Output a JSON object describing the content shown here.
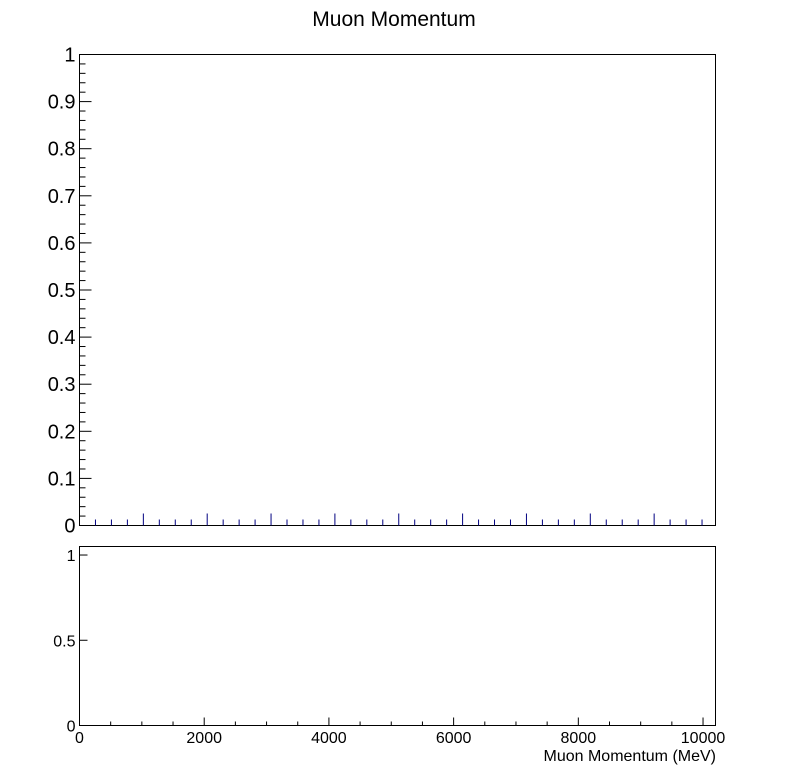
{
  "chart_data": [
    {
      "type": "bar",
      "title": "Muon Momentum",
      "xlabel": "",
      "ylabel": "",
      "xlim": [
        0,
        10200
      ],
      "ylim": [
        0,
        1
      ],
      "y_ticks": [
        0,
        0.1,
        0.2,
        0.3,
        0.4,
        0.5,
        0.6,
        0.7,
        0.8,
        0.9,
        1
      ],
      "y_tick_labels": [
        "0",
        "0.1",
        "0.2",
        "0.3",
        "0.4",
        "0.5",
        "0.6",
        "0.7",
        "0.8",
        "0.9",
        "1"
      ],
      "bin_width": 256,
      "grid": false,
      "colors": {
        "frame": "#000000",
        "bins": "#000080"
      },
      "series": []
    },
    {
      "type": "line",
      "title": "",
      "xlabel": "Muon Momentum (MeV)",
      "ylabel": "",
      "xlim": [
        0,
        10200
      ],
      "ylim": [
        0,
        1.05
      ],
      "x_ticks": [
        0,
        2000,
        4000,
        6000,
        8000,
        10000
      ],
      "x_tick_labels": [
        "0",
        "2000",
        "4000",
        "6000",
        "8000",
        "10000"
      ],
      "y_ticks": [
        0,
        0.5,
        1
      ],
      "y_tick_labels": [
        "0",
        "0.5",
        "1"
      ],
      "grid": false,
      "series": []
    }
  ]
}
